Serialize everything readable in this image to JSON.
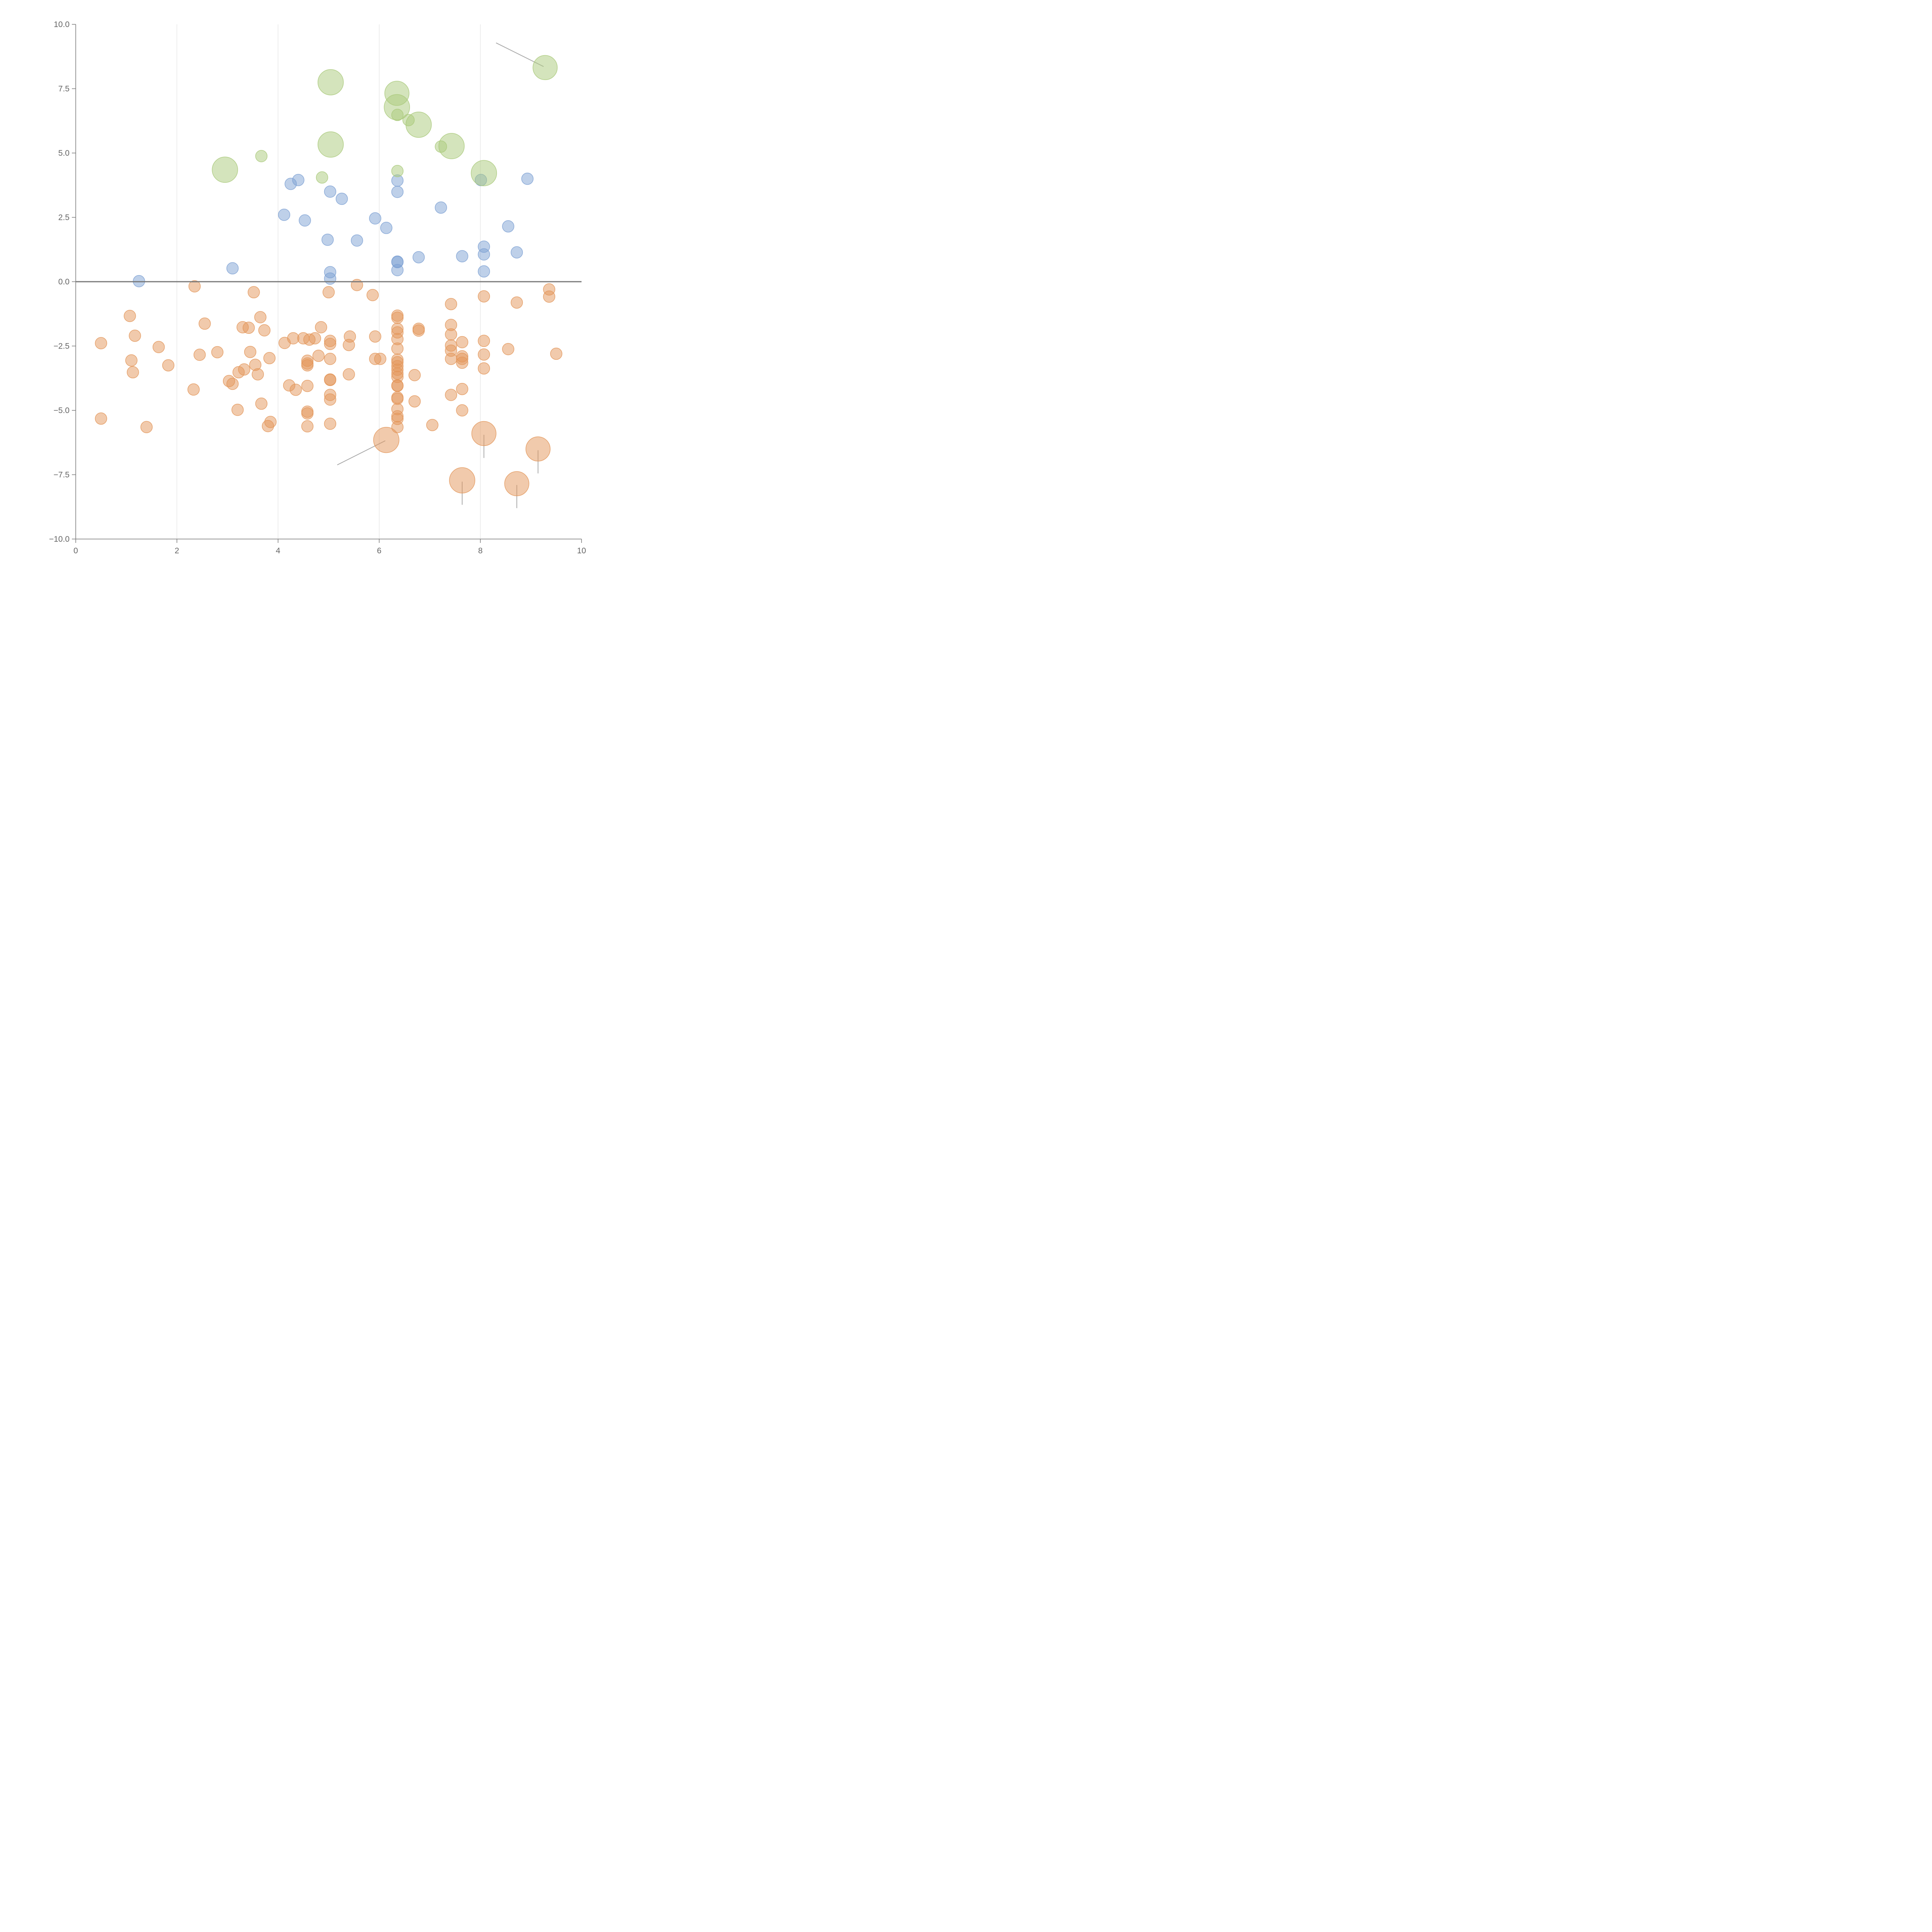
{
  "colors": {
    "blue": "#7ea1d4",
    "orange": "#e3965a",
    "green": "#a9c97a",
    "axis": "#777777",
    "grid": "#dddddd",
    "callout": "#aaaaaa"
  },
  "chart_data": {
    "type": "scatter",
    "subtype": "bubble",
    "title": "",
    "xlabel": "",
    "ylabel": "",
    "xlim": [
      0,
      10
    ],
    "ylim": [
      -10,
      10
    ],
    "xticks": [
      0,
      2,
      4,
      6,
      8,
      10
    ],
    "xtick_labels": [
      "0",
      "2",
      "4",
      "6",
      "8",
      "10"
    ],
    "yticks": [
      10,
      7.5,
      5,
      2.5,
      0,
      -2.5,
      -5,
      -7.5,
      -10
    ],
    "ytick_labels": [
      "10.0",
      "7.5",
      "5.0",
      "2.5",
      "0.0",
      "−2.5",
      "−5.0",
      "−7.5",
      "−10.0"
    ],
    "vertical_grid_at": [
      2,
      4,
      6,
      8
    ],
    "zero_line": 0,
    "legend": null,
    "series": [
      {
        "name": "blue",
        "color_key": "blue",
        "points": [
          {
            "x": 1.25,
            "y": 0.02,
            "s": 1
          },
          {
            "x": 3.1,
            "y": 0.52,
            "s": 1
          },
          {
            "x": 4.12,
            "y": 2.6,
            "s": 1
          },
          {
            "x": 4.25,
            "y": 3.8,
            "s": 1
          },
          {
            "x": 4.4,
            "y": 3.95,
            "s": 1
          },
          {
            "x": 4.53,
            "y": 2.38,
            "s": 1
          },
          {
            "x": 4.98,
            "y": 1.63,
            "s": 1
          },
          {
            "x": 5.03,
            "y": 3.5,
            "s": 1
          },
          {
            "x": 5.03,
            "y": 0.37,
            "s": 1
          },
          {
            "x": 5.03,
            "y": 0.12,
            "s": 1
          },
          {
            "x": 5.26,
            "y": 3.22,
            "s": 1
          },
          {
            "x": 5.56,
            "y": 1.6,
            "s": 1
          },
          {
            "x": 5.92,
            "y": 2.46,
            "s": 1
          },
          {
            "x": 6.14,
            "y": 2.09,
            "s": 1
          },
          {
            "x": 6.36,
            "y": 3.93,
            "s": 1
          },
          {
            "x": 6.36,
            "y": 3.49,
            "s": 1
          },
          {
            "x": 6.36,
            "y": 0.78,
            "s": 1
          },
          {
            "x": 6.36,
            "y": 0.76,
            "s": 1
          },
          {
            "x": 6.36,
            "y": 0.45,
            "s": 1
          },
          {
            "x": 6.78,
            "y": 0.95,
            "s": 1
          },
          {
            "x": 7.22,
            "y": 2.88,
            "s": 1
          },
          {
            "x": 7.64,
            "y": 0.99,
            "s": 1
          },
          {
            "x": 8.01,
            "y": 3.95,
            "s": 1
          },
          {
            "x": 8.07,
            "y": 1.36,
            "s": 1
          },
          {
            "x": 8.07,
            "y": 1.06,
            "s": 1
          },
          {
            "x": 8.07,
            "y": 0.4,
            "s": 1
          },
          {
            "x": 8.55,
            "y": 2.15,
            "s": 1
          },
          {
            "x": 8.72,
            "y": 1.14,
            "s": 1
          },
          {
            "x": 8.93,
            "y": 4.0,
            "s": 1
          }
        ]
      },
      {
        "name": "orange",
        "color_key": "orange",
        "points": [
          {
            "x": 0.5,
            "y": -2.39,
            "s": 1
          },
          {
            "x": 0.5,
            "y": -5.32,
            "s": 1
          },
          {
            "x": 1.07,
            "y": -1.33,
            "s": 1
          },
          {
            "x": 1.1,
            "y": -3.06,
            "s": 1
          },
          {
            "x": 1.13,
            "y": -3.52,
            "s": 1
          },
          {
            "x": 1.17,
            "y": -2.1,
            "s": 1
          },
          {
            "x": 1.4,
            "y": -5.65,
            "s": 1
          },
          {
            "x": 1.64,
            "y": -2.54,
            "s": 1
          },
          {
            "x": 1.83,
            "y": -3.25,
            "s": 1
          },
          {
            "x": 2.33,
            "y": -4.19,
            "s": 1
          },
          {
            "x": 2.35,
            "y": -0.18,
            "s": 1
          },
          {
            "x": 2.45,
            "y": -2.84,
            "s": 1
          },
          {
            "x": 2.55,
            "y": -1.63,
            "s": 1
          },
          {
            "x": 2.8,
            "y": -2.74,
            "s": 1
          },
          {
            "x": 3.03,
            "y": -3.86,
            "s": 1
          },
          {
            "x": 3.1,
            "y": -3.97,
            "s": 1
          },
          {
            "x": 3.2,
            "y": -4.98,
            "s": 1
          },
          {
            "x": 3.22,
            "y": -3.52,
            "s": 1
          },
          {
            "x": 3.3,
            "y": -1.77,
            "s": 1
          },
          {
            "x": 3.33,
            "y": -3.41,
            "s": 1
          },
          {
            "x": 3.42,
            "y": -1.79,
            "s": 1
          },
          {
            "x": 3.45,
            "y": -2.73,
            "s": 1
          },
          {
            "x": 3.52,
            "y": -0.41,
            "s": 1
          },
          {
            "x": 3.55,
            "y": -3.23,
            "s": 1
          },
          {
            "x": 3.6,
            "y": -3.6,
            "s": 1
          },
          {
            "x": 3.65,
            "y": -1.38,
            "s": 1
          },
          {
            "x": 3.67,
            "y": -4.74,
            "s": 1
          },
          {
            "x": 3.73,
            "y": -1.89,
            "s": 1
          },
          {
            "x": 3.8,
            "y": -5.61,
            "s": 1
          },
          {
            "x": 3.83,
            "y": -2.97,
            "s": 1
          },
          {
            "x": 3.85,
            "y": -5.45,
            "s": 1
          },
          {
            "x": 4.13,
            "y": -2.38,
            "s": 1
          },
          {
            "x": 4.22,
            "y": -4.03,
            "s": 1
          },
          {
            "x": 4.3,
            "y": -2.2,
            "s": 1
          },
          {
            "x": 4.35,
            "y": -4.2,
            "s": 1
          },
          {
            "x": 4.5,
            "y": -2.2,
            "s": 1
          },
          {
            "x": 4.58,
            "y": -3.07,
            "s": 1
          },
          {
            "x": 4.58,
            "y": -3.18,
            "s": 1
          },
          {
            "x": 4.58,
            "y": -3.25,
            "s": 1
          },
          {
            "x": 4.58,
            "y": -4.05,
            "s": 1
          },
          {
            "x": 4.58,
            "y": -5.05,
            "s": 1
          },
          {
            "x": 4.58,
            "y": -5.12,
            "s": 1
          },
          {
            "x": 4.58,
            "y": -5.62,
            "s": 1
          },
          {
            "x": 4.62,
            "y": -2.25,
            "s": 1
          },
          {
            "x": 4.73,
            "y": -2.2,
            "s": 1
          },
          {
            "x": 4.8,
            "y": -2.88,
            "s": 1
          },
          {
            "x": 4.85,
            "y": -1.77,
            "s": 1
          },
          {
            "x": 5.0,
            "y": -0.41,
            "s": 1
          },
          {
            "x": 5.03,
            "y": -2.3,
            "s": 1
          },
          {
            "x": 5.03,
            "y": -2.42,
            "s": 1
          },
          {
            "x": 5.03,
            "y": -3.0,
            "s": 1
          },
          {
            "x": 5.03,
            "y": -3.8,
            "s": 1
          },
          {
            "x": 5.03,
            "y": -3.82,
            "s": 1
          },
          {
            "x": 5.03,
            "y": -4.4,
            "s": 1
          },
          {
            "x": 5.03,
            "y": -4.58,
            "s": 1
          },
          {
            "x": 5.03,
            "y": -5.52,
            "s": 1
          },
          {
            "x": 5.4,
            "y": -2.46,
            "s": 1
          },
          {
            "x": 5.4,
            "y": -3.6,
            "s": 1
          },
          {
            "x": 5.42,
            "y": -2.13,
            "s": 1
          },
          {
            "x": 5.56,
            "y": -0.13,
            "s": 1
          },
          {
            "x": 5.87,
            "y": -0.52,
            "s": 1
          },
          {
            "x": 5.92,
            "y": -2.13,
            "s": 1
          },
          {
            "x": 5.92,
            "y": -3.0,
            "s": 1
          },
          {
            "x": 6.02,
            "y": -3.0,
            "s": 1
          },
          {
            "x": 6.36,
            "y": -1.32,
            "s": 1
          },
          {
            "x": 6.36,
            "y": -1.4,
            "s": 1
          },
          {
            "x": 6.36,
            "y": -1.83,
            "s": 1
          },
          {
            "x": 6.36,
            "y": -1.97,
            "s": 1
          },
          {
            "x": 6.36,
            "y": -2.23,
            "s": 1
          },
          {
            "x": 6.36,
            "y": -2.6,
            "s": 1
          },
          {
            "x": 6.36,
            "y": -3.03,
            "s": 1
          },
          {
            "x": 6.36,
            "y": -3.13,
            "s": 1
          },
          {
            "x": 6.36,
            "y": -3.28,
            "s": 1
          },
          {
            "x": 6.36,
            "y": -3.42,
            "s": 1
          },
          {
            "x": 6.36,
            "y": -3.57,
            "s": 1
          },
          {
            "x": 6.36,
            "y": -3.7,
            "s": 1
          },
          {
            "x": 6.36,
            "y": -4.03,
            "s": 1
          },
          {
            "x": 6.36,
            "y": -4.05,
            "s": 1
          },
          {
            "x": 6.36,
            "y": -4.5,
            "s": 1
          },
          {
            "x": 6.36,
            "y": -4.55,
            "s": 1
          },
          {
            "x": 6.36,
            "y": -4.95,
            "s": 1
          },
          {
            "x": 6.36,
            "y": -5.23,
            "s": 1
          },
          {
            "x": 6.36,
            "y": -5.33,
            "s": 1
          },
          {
            "x": 6.36,
            "y": -5.65,
            "s": 1
          },
          {
            "x": 6.7,
            "y": -3.63,
            "s": 1
          },
          {
            "x": 6.7,
            "y": -4.65,
            "s": 1
          },
          {
            "x": 6.78,
            "y": -1.83,
            "s": 1
          },
          {
            "x": 6.78,
            "y": -1.9,
            "s": 1
          },
          {
            "x": 7.05,
            "y": -5.57,
            "s": 1
          },
          {
            "x": 7.42,
            "y": -0.87,
            "s": 1
          },
          {
            "x": 7.42,
            "y": -1.68,
            "s": 1
          },
          {
            "x": 7.42,
            "y": -2.05,
            "s": 1
          },
          {
            "x": 7.42,
            "y": -2.48,
            "s": 1
          },
          {
            "x": 7.42,
            "y": -2.68,
            "s": 1
          },
          {
            "x": 7.42,
            "y": -3.0,
            "s": 1
          },
          {
            "x": 7.42,
            "y": -4.4,
            "s": 1
          },
          {
            "x": 7.64,
            "y": -2.35,
            "s": 1
          },
          {
            "x": 7.64,
            "y": -2.9,
            "s": 1
          },
          {
            "x": 7.64,
            "y": -3.0,
            "s": 1
          },
          {
            "x": 7.64,
            "y": -3.15,
            "s": 1
          },
          {
            "x": 7.64,
            "y": -4.17,
            "s": 1
          },
          {
            "x": 7.64,
            "y": -5.0,
            "s": 1
          },
          {
            "x": 8.07,
            "y": -0.57,
            "s": 1
          },
          {
            "x": 8.07,
            "y": -2.3,
            "s": 1
          },
          {
            "x": 8.07,
            "y": -2.83,
            "s": 1
          },
          {
            "x": 8.07,
            "y": -3.37,
            "s": 1
          },
          {
            "x": 8.55,
            "y": -2.62,
            "s": 1
          },
          {
            "x": 8.72,
            "y": -0.81,
            "s": 1
          },
          {
            "x": 9.36,
            "y": -0.3,
            "s": 1
          },
          {
            "x": 9.36,
            "y": -0.58,
            "s": 1
          },
          {
            "x": 9.5,
            "y": -2.8,
            "s": 1
          },
          {
            "x": 6.14,
            "y": -6.15,
            "s": 2.2
          },
          {
            "x": 8.07,
            "y": -5.9,
            "s": 2.1
          },
          {
            "x": 9.14,
            "y": -6.5,
            "s": 2.1
          },
          {
            "x": 7.64,
            "y": -7.72,
            "s": 2.2
          },
          {
            "x": 8.72,
            "y": -7.85,
            "s": 2.1
          }
        ]
      },
      {
        "name": "green",
        "color_key": "green",
        "points": [
          {
            "x": 2.95,
            "y": 4.35,
            "s": 2.2
          },
          {
            "x": 3.67,
            "y": 4.88,
            "s": 1
          },
          {
            "x": 4.87,
            "y": 4.05,
            "s": 1
          },
          {
            "x": 5.04,
            "y": 7.75,
            "s": 2.2
          },
          {
            "x": 5.04,
            "y": 5.33,
            "s": 2.2
          },
          {
            "x": 6.35,
            "y": 7.32,
            "s": 2.1
          },
          {
            "x": 6.35,
            "y": 6.78,
            "s": 2.2
          },
          {
            "x": 6.36,
            "y": 6.48,
            "s": 1
          },
          {
            "x": 6.36,
            "y": 4.3,
            "s": 1
          },
          {
            "x": 6.58,
            "y": 6.28,
            "s": 1
          },
          {
            "x": 6.78,
            "y": 6.1,
            "s": 2.2
          },
          {
            "x": 7.22,
            "y": 5.25,
            "s": 1
          },
          {
            "x": 7.43,
            "y": 5.27,
            "s": 2.2
          },
          {
            "x": 8.07,
            "y": 4.22,
            "s": 2.2
          },
          {
            "x": 9.28,
            "y": 8.32,
            "s": 2.1
          }
        ]
      }
    ],
    "callouts": [
      {
        "color": "gray",
        "points": [
          [
            8.31,
            9.28
          ],
          [
            9.25,
            8.36
          ]
        ]
      },
      {
        "color": "gray",
        "points": [
          [
            6.12,
            -6.18
          ],
          [
            5.17,
            -7.12
          ]
        ]
      },
      {
        "color": "gray",
        "points": [
          [
            8.07,
            -5.95
          ],
          [
            8.07,
            -6.85
          ]
        ]
      },
      {
        "color": "gray",
        "points": [
          [
            9.14,
            -6.55
          ],
          [
            9.14,
            -7.45
          ]
        ]
      },
      {
        "color": "gray",
        "points": [
          [
            7.64,
            -7.77
          ],
          [
            7.64,
            -8.67
          ]
        ]
      },
      {
        "color": "gray",
        "points": [
          [
            8.72,
            -7.9
          ],
          [
            8.72,
            -8.8
          ]
        ]
      },
      {
        "color": "white",
        "points": [
          [
            6.39,
            7.32
          ],
          [
            6.85,
            7.34
          ]
        ]
      },
      {
        "color": "white",
        "points": [
          [
            6.35,
            6.73
          ],
          [
            6.33,
            6.26
          ]
        ]
      },
      {
        "color": "white",
        "points": [
          [
            6.8,
            6.05
          ],
          [
            6.88,
            5.9
          ]
        ]
      },
      {
        "color": "white",
        "points": [
          [
            5.05,
            5.28
          ],
          [
            5.06,
            4.95
          ]
        ]
      },
      {
        "color": "white",
        "points": [
          [
            2.97,
            4.3
          ],
          [
            2.96,
            4.47
          ]
        ]
      },
      {
        "color": "white",
        "points": [
          [
            7.47,
            5.27
          ],
          [
            7.58,
            5.28
          ]
        ]
      },
      {
        "color": "white",
        "points": [
          [
            8.09,
            4.22
          ],
          [
            8.26,
            4.1
          ]
        ]
      }
    ]
  }
}
